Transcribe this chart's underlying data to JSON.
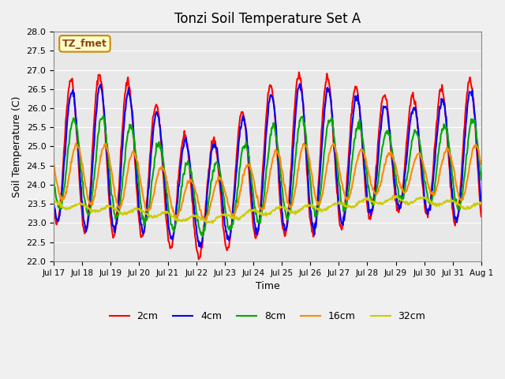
{
  "title": "Tonzi Soil Temperature Set A",
  "xlabel": "Time",
  "ylabel": "Soil Temperature (C)",
  "annotation": "TZ_fmet",
  "ylim": [
    22.0,
    28.0
  ],
  "yticks": [
    22.0,
    22.5,
    23.0,
    23.5,
    24.0,
    24.5,
    25.0,
    25.5,
    26.0,
    26.5,
    27.0,
    27.5,
    28.0
  ],
  "xtick_labels": [
    "Jul 17",
    "Jul 18",
    "Jul 19",
    "Jul 20",
    "Jul 21",
    "Jul 22",
    "Jul 23",
    "Jul 24",
    "Jul 25",
    "Jul 26",
    "Jul 27",
    "Jul 28",
    "Jul 29",
    "Jul 30",
    "Jul 31",
    "Aug 1"
  ],
  "series_colors": {
    "2cm": "#ff0000",
    "4cm": "#0000ff",
    "8cm": "#00aa00",
    "16cm": "#ff8800",
    "32cm": "#cccc00"
  },
  "series_linewidths": {
    "2cm": 1.5,
    "4cm": 1.5,
    "8cm": 1.5,
    "16cm": 1.5,
    "32cm": 1.5
  },
  "fig_bg_color": "#f0f0f0",
  "plot_bg_color": "#e8e8e8",
  "grid_color": "#ffffff",
  "legend_ncol": 5
}
